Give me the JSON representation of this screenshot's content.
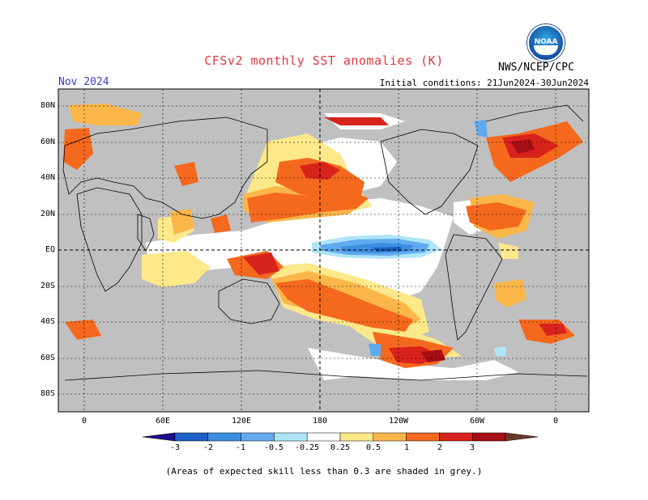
{
  "header": {
    "title": "CFSv2 monthly SST anomalies (K)",
    "month": "Nov 2024",
    "initial_conditions": "Initial conditions: 21Jun2024-30Jun2024",
    "agency": "NWS/NCEP/CPC",
    "logo_text": "NOAA"
  },
  "map": {
    "projection": "cylindrical equidistant",
    "lat_labels": [
      "80N",
      "60N",
      "40N",
      "20N",
      "EQ",
      "20S",
      "40S",
      "60S",
      "80S"
    ],
    "lon_labels": [
      "0",
      "60E",
      "120E",
      "180",
      "120W",
      "60W",
      "0"
    ],
    "skill_mask_color": "#c0c0c0",
    "ocean_neutral_color": "#ffffff",
    "land_color": "#c0c0c0"
  },
  "colorbar": {
    "labels": [
      "-3",
      "-2",
      "-1",
      "-0.5",
      "-0.25",
      "0.25",
      "0.5",
      "1",
      "2",
      "3"
    ],
    "colors": [
      "#1a0f8c",
      "#1d5fc4",
      "#3b8ee0",
      "#62aaf0",
      "#aee4f7",
      "#ffffff",
      "#fde88a",
      "#fbb64a",
      "#f4691e",
      "#d8231c",
      "#a50f15",
      "#6b3a2a"
    ]
  },
  "footer": {
    "note": "(Areas of expected skill less than 0.3 are shaded in grey.)"
  }
}
